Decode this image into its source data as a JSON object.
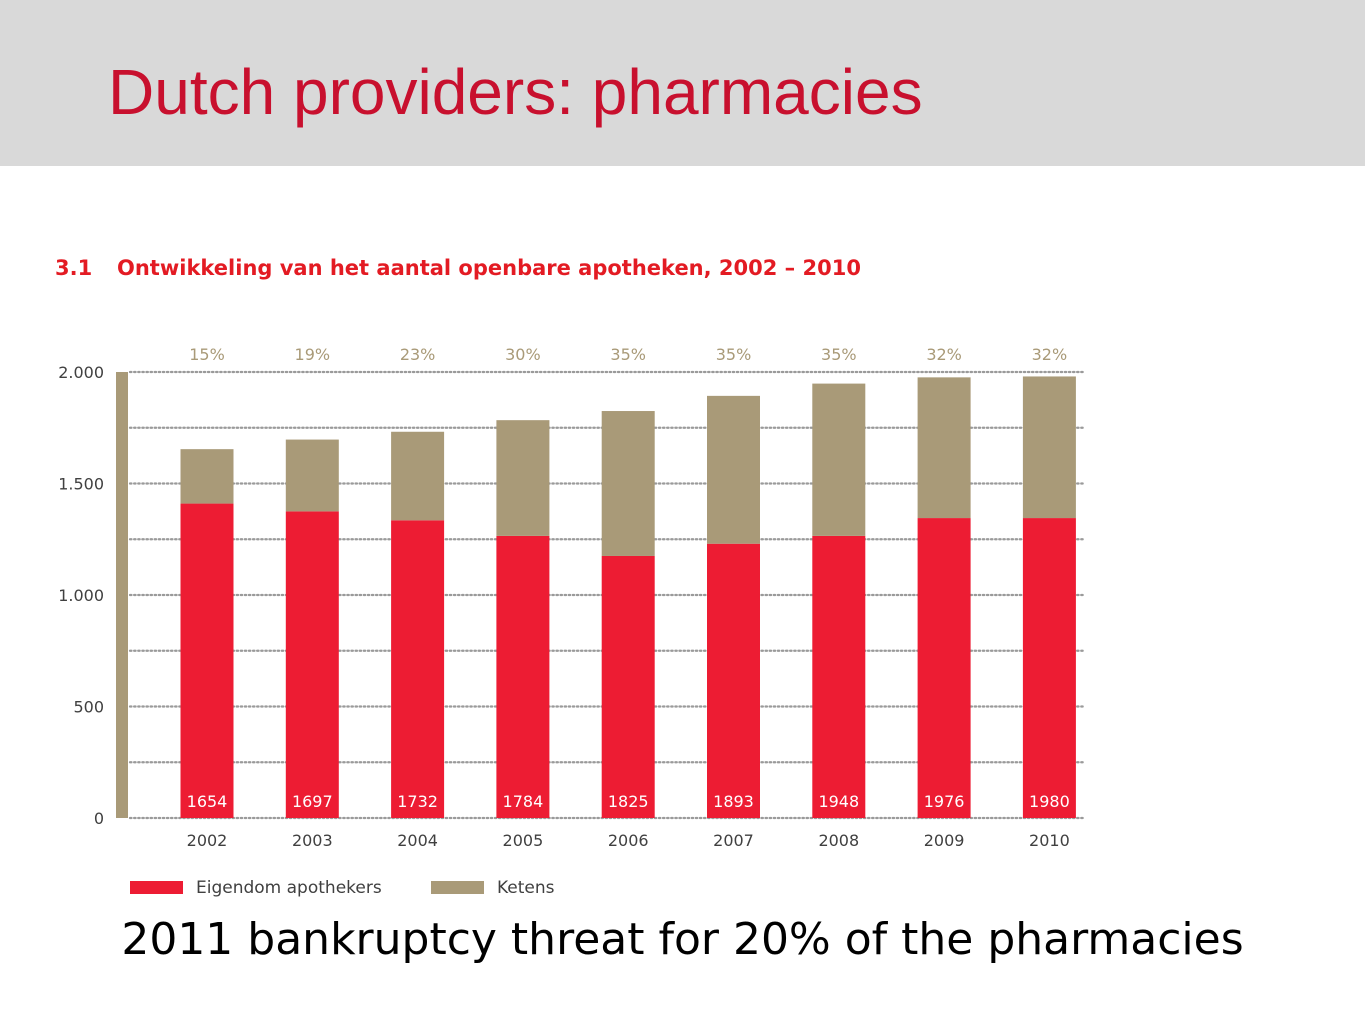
{
  "slide": {
    "title": "Dutch providers: pharmacies",
    "footnote": "2011 bankruptcy threat for 20% of the pharmacies"
  },
  "colors": {
    "title": "#c8102e",
    "header_band": "#d9d9d9",
    "owned": "#ed1c33",
    "chains": "#a99a78",
    "percent_label": "#a99a78",
    "axis": "#a99a78",
    "grid": "#9a9a9a",
    "tick_text": "#404040",
    "total_label": "#ffffff"
  },
  "chart_data": {
    "type": "bar",
    "stacked": true,
    "number": "3.1",
    "title": "Ontwikkeling van het aantal openbare apotheken, 2002 – 2010",
    "categories": [
      "2002",
      "2003",
      "2004",
      "2005",
      "2006",
      "2007",
      "2008",
      "2009",
      "2010"
    ],
    "series": [
      {
        "name": "Eigendom apothekers",
        "values": [
          1410,
          1375,
          1335,
          1265,
          1175,
          1230,
          1265,
          1345,
          1345
        ]
      },
      {
        "name": "Ketens",
        "values": [
          244,
          322,
          397,
          519,
          650,
          663,
          683,
          631,
          635
        ]
      }
    ],
    "totals": [
      "1654",
      "1697",
      "1732",
      "1784",
      "1825",
      "1893",
      "1948",
      "1976",
      "1980"
    ],
    "chain_share_labels": [
      "15%",
      "19%",
      "23%",
      "30%",
      "35%",
      "35%",
      "35%",
      "32%",
      "32%"
    ],
    "ylim": [
      0,
      2000
    ],
    "yticks": [
      {
        "value": 0,
        "label": "0"
      },
      {
        "value": 500,
        "label": "500"
      },
      {
        "value": 1000,
        "label": "1.000"
      },
      {
        "value": 1500,
        "label": "1.500"
      },
      {
        "value": 2000,
        "label": "2.000"
      }
    ],
    "minor_gridlines": [
      250,
      750,
      1250,
      1750
    ],
    "grid": true,
    "legend_position": "bottom-left",
    "xlabel": "",
    "ylabel": ""
  }
}
